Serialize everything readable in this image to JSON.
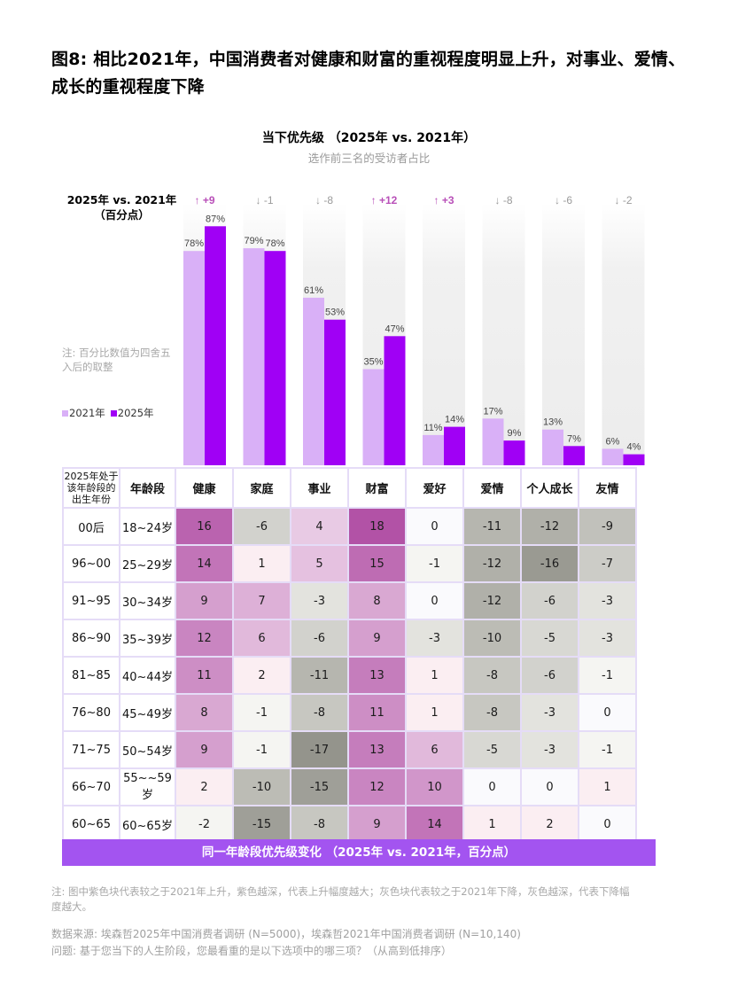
{
  "title": "图8: 相比2021年，中国消费者对健康和财富的重视程度明显上升，对事业、爱情、成长的重视程度下降",
  "colors": {
    "bar_2021": "#d9b0f7",
    "bar_2025": "#a000f5",
    "bar_bg": "#efefef",
    "delta_up": "#b84fb8",
    "delta_down": "#9a9a9a",
    "footer_bar": "#a354f0"
  },
  "chart_data": [
    {
      "type": "bar",
      "title": "当下优先级 （2025年 vs. 2021年）",
      "subtitle": "选作前三名的受访者占比",
      "categories": [
        "健康",
        "家庭",
        "事业",
        "财富",
        "爱好",
        "爱情",
        "个人成长",
        "友情"
      ],
      "series": [
        {
          "name": "2021年",
          "values": [
            78,
            79,
            61,
            35,
            11,
            17,
            13,
            6
          ]
        },
        {
          "name": "2025年",
          "values": [
            87,
            78,
            53,
            47,
            14,
            9,
            7,
            4
          ]
        }
      ],
      "value_suffix": "%",
      "ylim": [
        0,
        100
      ],
      "delta_header": [
        "2025年 vs. 2021年",
        "（百分点）"
      ],
      "deltas": [
        {
          "dir": "up",
          "label": "+9"
        },
        {
          "dir": "down",
          "label": "-1"
        },
        {
          "dir": "down",
          "label": "-8"
        },
        {
          "dir": "up",
          "label": "+12"
        },
        {
          "dir": "up",
          "label": "+3"
        },
        {
          "dir": "down",
          "label": "-8"
        },
        {
          "dir": "down",
          "label": "-6"
        },
        {
          "dir": "down",
          "label": "-2"
        }
      ],
      "note": "注: 百分比数值为四舍五入后的取整",
      "legend": [
        "2021年",
        "2025年"
      ],
      "legend_position": "left"
    },
    {
      "type": "heatmap",
      "title": "同一年龄段优先级变化 （2025年 vs. 2021年，百分点）",
      "header_birth": "2025年处于该年龄段的出生年份",
      "header_age": "年龄段",
      "columns": [
        "健康",
        "家庭",
        "事业",
        "财富",
        "爱好",
        "爱情",
        "个人成长",
        "友情"
      ],
      "rows": [
        {
          "birth": "00后",
          "age": "18~24岁",
          "values": [
            16,
            -6,
            4,
            18,
            0,
            -11,
            -12,
            -9
          ]
        },
        {
          "birth": "96~00",
          "age": "25~29岁",
          "values": [
            14,
            1,
            5,
            15,
            -1,
            -12,
            -16,
            -7
          ]
        },
        {
          "birth": "91~95",
          "age": "30~34岁",
          "values": [
            9,
            7,
            -3,
            8,
            0,
            -12,
            -6,
            -3
          ]
        },
        {
          "birth": "86~90",
          "age": "35~39岁",
          "values": [
            12,
            6,
            -6,
            9,
            -3,
            -10,
            -5,
            -3
          ]
        },
        {
          "birth": "81~85",
          "age": "40~44岁",
          "values": [
            11,
            2,
            -11,
            13,
            1,
            -8,
            -6,
            -1
          ]
        },
        {
          "birth": "76~80",
          "age": "45~49岁",
          "values": [
            8,
            -1,
            -8,
            11,
            1,
            -8,
            -3,
            0
          ]
        },
        {
          "birth": "71~75",
          "age": "50~54岁",
          "values": [
            9,
            -1,
            -17,
            13,
            6,
            -5,
            -3,
            -1
          ]
        },
        {
          "birth": "66~70",
          "age": "55~~59岁",
          "values": [
            2,
            -10,
            -15,
            12,
            10,
            0,
            0,
            1
          ]
        },
        {
          "birth": "60~65",
          "age": "60~65岁",
          "values": [
            -2,
            -15,
            -8,
            9,
            14,
            1,
            2,
            0
          ]
        }
      ]
    }
  ],
  "footnote": "注: 图中紫色块代表较之于2021年上升，紫色越深，代表上升幅度越大；灰色块代表较之于2021年下降，灰色越深，代表下降幅度越大。",
  "source_line": "数据来源: 埃森哲2025年中国消费者调研 (N=5000)，埃森哲2021年中国消费者调研 (N=10,140)",
  "question_line": "问题: 基于您当下的人生阶段，您最看重的是以下选项中的哪三项？（从高到低排序）"
}
